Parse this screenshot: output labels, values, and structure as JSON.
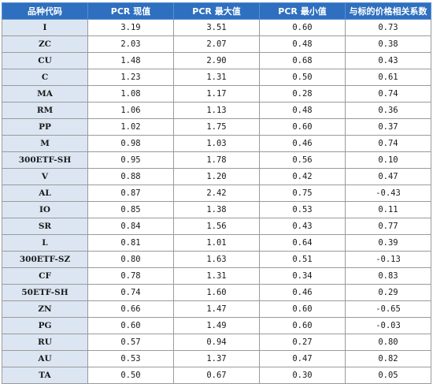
{
  "table": {
    "headers": [
      "品种代码",
      "PCR 现值",
      "PCR 最大值",
      "PCR 最小值",
      "与标的价格相关系数"
    ],
    "rows": [
      [
        "I",
        "3.19",
        "3.51",
        "0.60",
        "0.73"
      ],
      [
        "ZC",
        "2.03",
        "2.07",
        "0.48",
        "0.38"
      ],
      [
        "CU",
        "1.48",
        "2.90",
        "0.68",
        "0.43"
      ],
      [
        "C",
        "1.23",
        "1.31",
        "0.50",
        "0.61"
      ],
      [
        "MA",
        "1.08",
        "1.17",
        "0.28",
        "0.74"
      ],
      [
        "RM",
        "1.06",
        "1.13",
        "0.48",
        "0.36"
      ],
      [
        "PP",
        "1.02",
        "1.75",
        "0.60",
        "0.37"
      ],
      [
        "M",
        "0.98",
        "1.03",
        "0.46",
        "0.74"
      ],
      [
        "300ETF-SH",
        "0.95",
        "1.78",
        "0.56",
        "0.10"
      ],
      [
        "V",
        "0.88",
        "1.20",
        "0.42",
        "0.47"
      ],
      [
        "AL",
        "0.87",
        "2.42",
        "0.75",
        "-0.43"
      ],
      [
        "IO",
        "0.85",
        "1.38",
        "0.53",
        "0.11"
      ],
      [
        "SR",
        "0.84",
        "1.56",
        "0.43",
        "0.77"
      ],
      [
        "L",
        "0.81",
        "1.01",
        "0.64",
        "0.39"
      ],
      [
        "300ETF-SZ",
        "0.80",
        "1.63",
        "0.51",
        "-0.13"
      ],
      [
        "CF",
        "0.78",
        "1.31",
        "0.34",
        "0.83"
      ],
      [
        "50ETF-SH",
        "0.74",
        "1.60",
        "0.46",
        "0.29"
      ],
      [
        "ZN",
        "0.66",
        "1.47",
        "0.60",
        "-0.65"
      ],
      [
        "PG",
        "0.60",
        "1.49",
        "0.60",
        "-0.03"
      ],
      [
        "RU",
        "0.57",
        "0.94",
        "0.27",
        "0.80"
      ],
      [
        "AU",
        "0.53",
        "1.37",
        "0.47",
        "0.82"
      ],
      [
        "TA",
        "0.50",
        "0.67",
        "0.30",
        "0.05"
      ]
    ]
  }
}
